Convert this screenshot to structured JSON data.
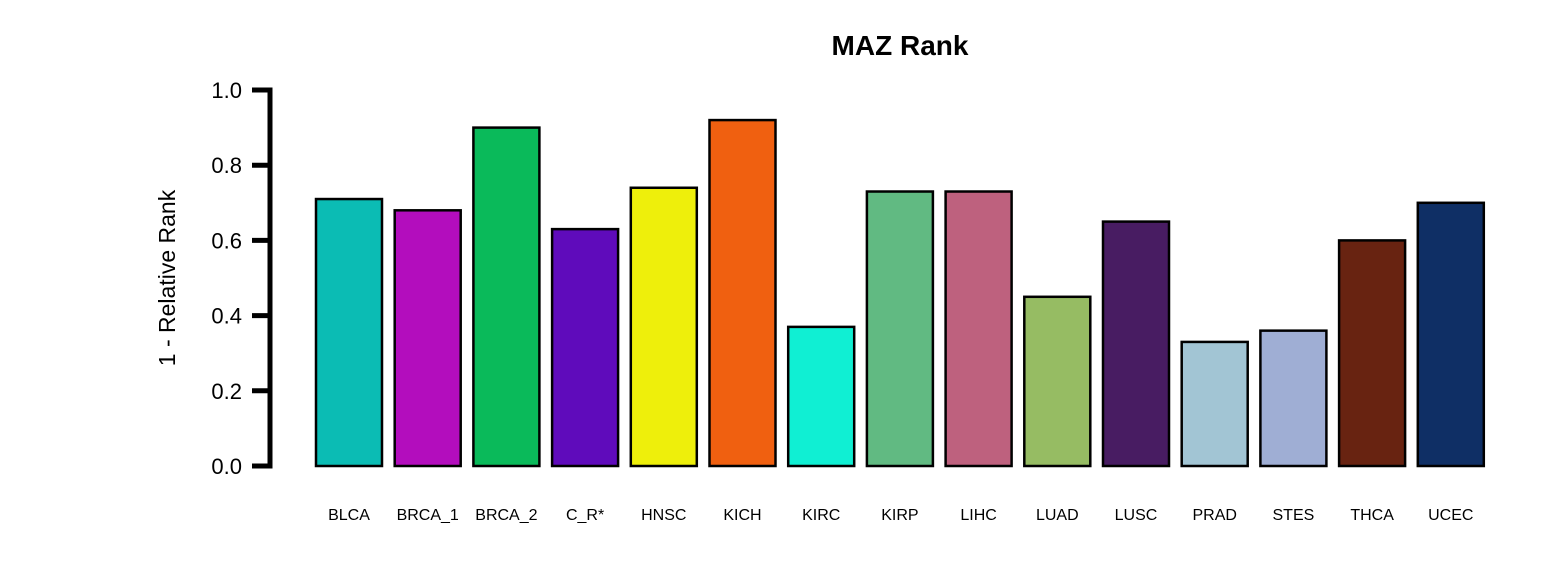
{
  "chart_data": {
    "type": "bar",
    "title": "MAZ Rank",
    "xlabel": "",
    "ylabel": "1 - Relative Rank",
    "ylim": [
      0,
      1
    ],
    "yticks": [
      "0.0",
      "0.2",
      "0.4",
      "0.6",
      "0.8",
      "1.0"
    ],
    "ytick_values": [
      0,
      0.2,
      0.4,
      0.6,
      0.8,
      1.0
    ],
    "grid": false,
    "legend": "none",
    "categories": [
      "BLCA",
      "BRCA_1",
      "BRCA_2",
      "C_R*",
      "HNSC",
      "KICH",
      "KIRC",
      "KIRP",
      "LIHC",
      "LUAD",
      "LUSC",
      "PRAD",
      "STES",
      "THCA",
      "UCEC"
    ],
    "values": [
      0.71,
      0.68,
      0.9,
      0.63,
      0.74,
      0.92,
      0.37,
      0.73,
      0.73,
      0.45,
      0.65,
      0.33,
      0.36,
      0.6,
      0.7
    ],
    "colors": [
      "#0bbcb4",
      "#b30dbd",
      "#0aba5a",
      "#5f0bbb",
      "#eeef0b",
      "#f06010",
      "#10efd3",
      "#61ba82",
      "#be617e",
      "#96bc63",
      "#481c62",
      "#a2c5d4",
      "#9faed4",
      "#682311",
      "#0f2f65"
    ]
  }
}
